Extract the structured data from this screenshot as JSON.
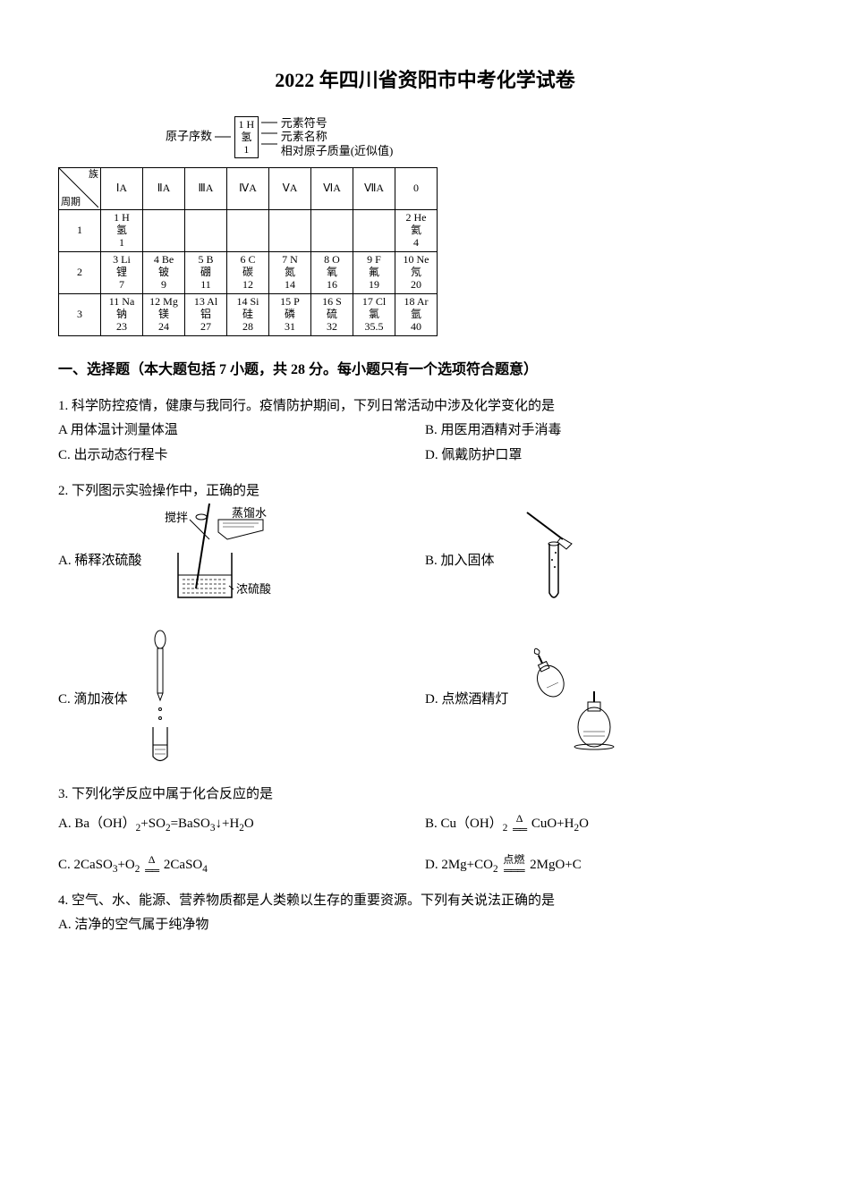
{
  "title": "2022 年四川省资阳市中考化学试卷",
  "legend": {
    "atomic_number": "原子序数",
    "symbol_label": "元素符号",
    "name_label": "元素名称",
    "mass_label": "相对原子质量(近似值)",
    "box": {
      "top": "1 H",
      "mid": "氢",
      "bot": "1"
    }
  },
  "periodic": {
    "corner_period": "周期",
    "corner_group": "族",
    "groups": [
      "ⅠA",
      "ⅡA",
      "ⅢA",
      "ⅣA",
      "ⅤA",
      "ⅥA",
      "ⅦA",
      "0"
    ],
    "periods": [
      "1",
      "2",
      "3"
    ],
    "cells": {
      "1": {
        "0": "1 H\n氢\n1",
        "7": "2 He\n氦\n4"
      },
      "2": {
        "0": "3 Li\n锂\n7",
        "1": "4 Be\n铍\n9",
        "2": "5 B\n硼\n11",
        "3": "6 C\n碳\n12",
        "4": "7 N\n氮\n14",
        "5": "8 O\n氧\n16",
        "6": "9 F\n氟\n19",
        "7": "10 Ne\n氖\n20"
      },
      "3": {
        "0": "11 Na\n钠\n23",
        "1": "12 Mg\n镁\n24",
        "2": "13 Al\n铝\n27",
        "3": "14 Si\n硅\n28",
        "4": "15 P\n磷\n31",
        "5": "16 S\n硫\n32",
        "6": "17 Cl\n氯\n35.5",
        "7": "18 Ar\n氩\n40"
      }
    }
  },
  "section1": "一、选择题（本大题包括 7 小题，共 28 分。每小题只有一个选项符合题意）",
  "q1": {
    "stem": "1. 科学防控疫情，健康与我同行。疫情防护期间，下列日常活动中涉及化学变化的是",
    "a": "A  用体温计测量体温",
    "b": "B. 用医用酒精对手消毒",
    "c": "C. 出示动态行程卡",
    "d": "D. 佩戴防护口罩"
  },
  "q2": {
    "stem": "2. 下列图示实验操作中，正确的是",
    "a": "A. 稀释浓硫酸",
    "b": "B. 加入固体",
    "c": "C. 滴加液体",
    "d": "D. 点燃酒精灯",
    "labels": {
      "stir": "搅拌",
      "water": "蒸馏水",
      "acid": "浓硫酸"
    }
  },
  "q3": {
    "stem": "3. 下列化学反应中属于化合反应的是",
    "a_pre": "A. Ba（OH）",
    "a_post": "=BaSO",
    "b_pre": "B. Cu（OH）",
    "b_post": " CuO+H",
    "c_pre": "C. 2CaSO",
    "c_mid": "+O",
    "c_post": " 2CaSO",
    "d_pre": "D. 2Mg+CO",
    "d_post": " 2MgO+C",
    "delta": "Δ",
    "fire": "点燃",
    "downarrow": "↓"
  },
  "q4": {
    "stem": "4. 空气、水、能源、营养物质都是人类赖以生存的重要资源。下列有关说法正确的是",
    "a": "A. 洁净的空气属于纯净物"
  }
}
